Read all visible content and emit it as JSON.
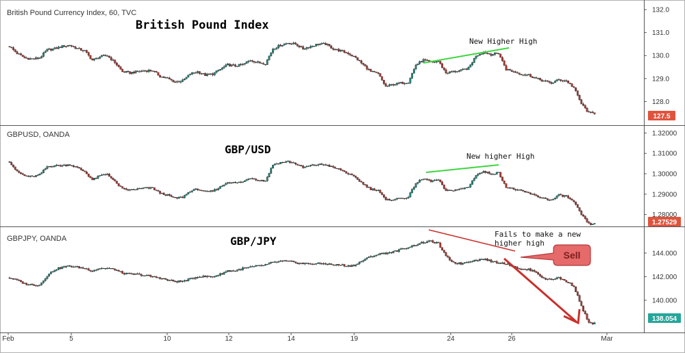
{
  "chart_data": [
    {
      "type": "candlestick",
      "symbol_label": "British Pound Currency Index, 60, TVC",
      "title": "British Pound Index",
      "ylim": [
        127.0,
        132.3
      ],
      "y_ticks": [
        "132.0",
        "131.0",
        "130.0",
        "129.0",
        "128.0"
      ],
      "last_price": "127.5",
      "last_price_color": "#e0533c",
      "annotation": "New Higher High",
      "trendline_color": "#3dd63d",
      "levels": [
        130.4,
        130.1,
        129.9,
        129.85,
        129.9,
        130.25,
        130.3,
        130.4,
        130.45,
        130.3,
        130.2,
        129.8,
        129.95,
        130.0,
        129.7,
        129.3,
        129.25,
        129.3,
        129.35,
        129.35,
        129.1,
        129.0,
        128.85,
        128.9,
        129.2,
        129.3,
        129.15,
        129.2,
        129.4,
        129.6,
        129.55,
        129.6,
        129.8,
        129.7,
        129.65,
        130.3,
        130.45,
        130.55,
        130.5,
        130.3,
        130.4,
        130.5,
        130.5,
        130.3,
        130.2,
        130.1,
        129.9,
        129.6,
        129.3,
        129.2,
        128.65,
        128.75,
        128.8,
        128.85,
        129.6,
        129.8,
        129.7,
        129.75,
        129.25,
        129.3,
        129.35,
        129.45,
        130.0,
        130.15,
        130.05,
        130.1,
        129.4,
        129.3,
        129.2,
        129.15,
        129.0,
        128.9,
        128.8,
        128.95,
        128.9,
        128.6,
        127.9,
        127.5
      ]
    },
    {
      "type": "candlestick",
      "symbol_label": "GBPUSD, OANDA",
      "title": "GBP/USD",
      "ylim": [
        1.2745,
        1.3235
      ],
      "y_ticks": [
        "1.32000",
        "1.31000",
        "1.30000",
        "1.29000",
        "1.28000"
      ],
      "last_price": "1.27529",
      "last_price_color": "#e0533c",
      "annotation": "New higher High",
      "trendline_color": "#3dd63d",
      "levels": [
        1.306,
        1.301,
        1.299,
        1.2985,
        1.2995,
        1.3035,
        1.304,
        1.304,
        1.3045,
        1.303,
        1.301,
        1.297,
        1.299,
        1.3,
        1.296,
        1.2925,
        1.292,
        1.2925,
        1.293,
        1.293,
        1.2905,
        1.2895,
        1.288,
        1.2885,
        1.2915,
        1.2925,
        1.291,
        1.2915,
        1.2935,
        1.296,
        1.2955,
        1.296,
        1.298,
        1.297,
        1.2965,
        1.3045,
        1.3055,
        1.306,
        1.305,
        1.303,
        1.304,
        1.3045,
        1.3045,
        1.303,
        1.302,
        1.3,
        1.298,
        1.295,
        1.2925,
        1.292,
        1.287,
        1.2875,
        1.288,
        1.2885,
        1.2955,
        1.2975,
        1.2965,
        1.297,
        1.2915,
        1.292,
        1.2925,
        1.2935,
        1.2995,
        1.301,
        1.3,
        1.3005,
        1.2935,
        1.2925,
        1.2915,
        1.2905,
        1.289,
        1.288,
        1.287,
        1.2895,
        1.289,
        1.286,
        1.28,
        1.2753
      ]
    },
    {
      "type": "candlestick",
      "symbol_label": "GBPJPY, OANDA",
      "title": "GBP/JPY",
      "ylim": [
        137.5,
        146.2
      ],
      "y_ticks": [
        "144.000",
        "142.000",
        "140.000"
      ],
      "last_price": "138.054",
      "last_price_color": "#26a69a",
      "annotation_lines": [
        "Fails to make a new",
        "higher high"
      ],
      "sell_label": "Sell",
      "sell_color": "#e66a6a",
      "trendline_color": "#c9302c",
      "levels": [
        141.9,
        141.7,
        141.4,
        141.3,
        141.3,
        142.1,
        142.6,
        142.8,
        142.9,
        142.8,
        142.7,
        142.5,
        142.7,
        142.7,
        142.6,
        142.3,
        142.2,
        142.2,
        142.1,
        142.0,
        141.9,
        141.7,
        141.6,
        141.6,
        141.8,
        142.0,
        142.0,
        142.0,
        142.2,
        142.5,
        142.5,
        142.7,
        142.8,
        142.9,
        143.0,
        143.2,
        143.3,
        143.3,
        143.2,
        143.1,
        143.1,
        143.1,
        143.1,
        143.0,
        143.0,
        142.9,
        143.0,
        143.4,
        143.7,
        143.9,
        144.0,
        144.1,
        144.3,
        144.5,
        144.7,
        144.9,
        145.0,
        144.8,
        143.7,
        143.2,
        143.1,
        143.3,
        143.4,
        143.5,
        143.3,
        143.2,
        143.1,
        142.9,
        142.6,
        142.6,
        142.4,
        141.8,
        141.8,
        141.9,
        141.6,
        141.2,
        139.5,
        138.05
      ]
    }
  ],
  "x_axis": {
    "labels": [
      "Feb",
      "5",
      "10",
      "12",
      "14",
      "19",
      "24",
      "26",
      "Mar"
    ]
  }
}
